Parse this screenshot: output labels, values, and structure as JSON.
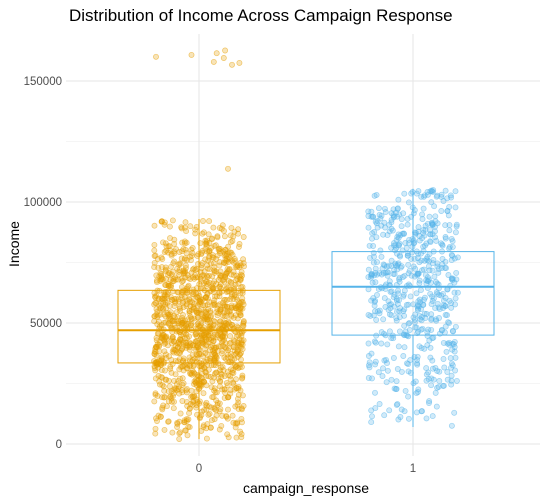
{
  "chart_data": {
    "type": "box",
    "title": "Distribution of Income Across Campaign Response",
    "xlabel": "campaign_response",
    "ylabel": "Income",
    "categories": [
      "0",
      "1"
    ],
    "ylim": [
      -3000,
      167000
    ],
    "yticks": [
      0,
      50000,
      100000,
      150000
    ],
    "ytick_labels": [
      "0",
      "50000",
      "100000",
      "150000"
    ],
    "grid": true,
    "series": [
      {
        "category": "0",
        "color": "#E69F00",
        "n_points": 1300,
        "box": {
          "whisker_low": 2000,
          "q1": 33500,
          "median": 47000,
          "q3": 63500,
          "whisker_high": 93000
        },
        "outliers": [
          113700,
          156700,
          157500,
          157900,
          159500,
          160000,
          160800,
          161500,
          162600
        ]
      },
      {
        "category": "1",
        "color": "#56B4E9",
        "n_points": 600,
        "box": {
          "whisker_low": 7000,
          "q1": 45000,
          "median": 65000,
          "q3": 79500,
          "whisker_high": 105500
        },
        "outliers": []
      }
    ]
  }
}
